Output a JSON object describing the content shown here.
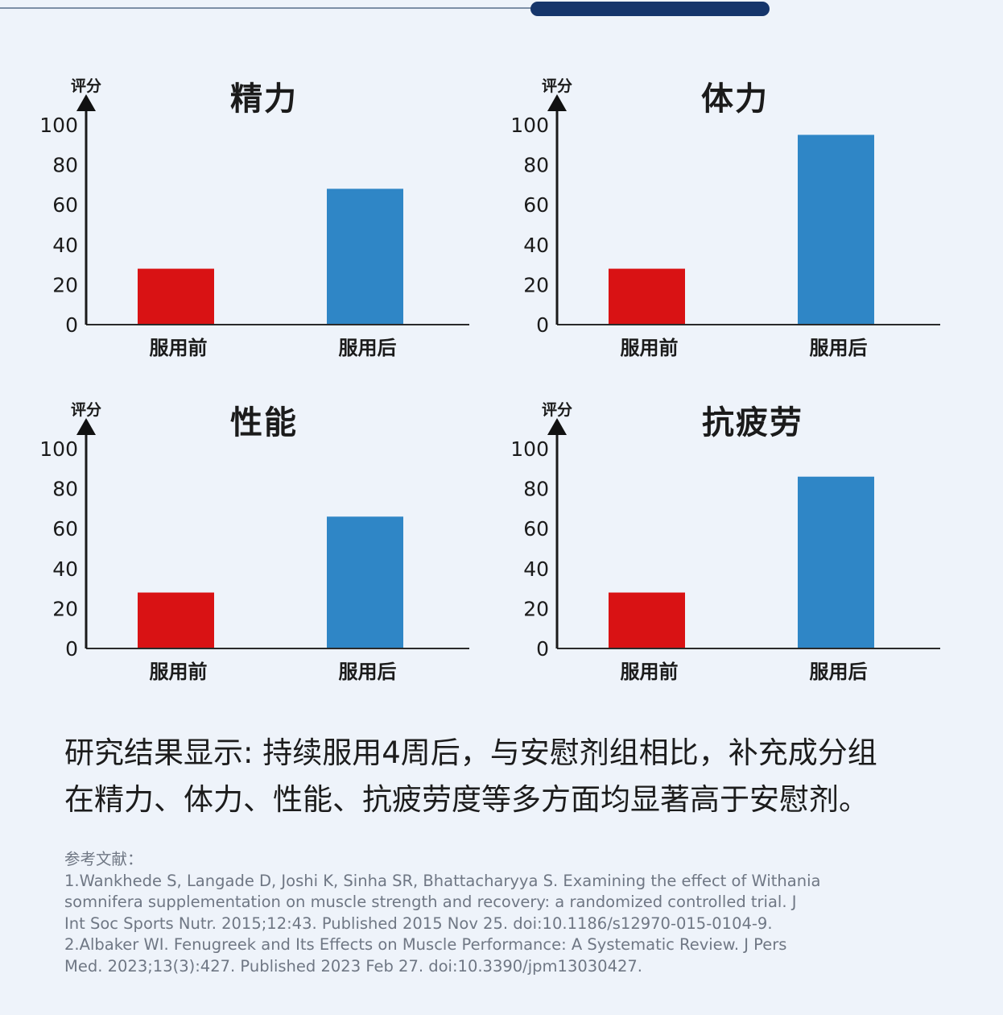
{
  "chart_data": [
    {
      "type": "bar",
      "title": "精力",
      "ylabel": "评分",
      "categories": [
        "服用前",
        "服用后"
      ],
      "values": [
        28,
        68
      ],
      "ylim": [
        0,
        100
      ],
      "yticks": [
        0,
        20,
        40,
        60,
        80,
        100
      ],
      "colors": [
        "#d91214",
        "#2f86c6"
      ]
    },
    {
      "type": "bar",
      "title": "体力",
      "ylabel": "评分",
      "categories": [
        "服用前",
        "服用后"
      ],
      "values": [
        28,
        95
      ],
      "ylim": [
        0,
        100
      ],
      "yticks": [
        0,
        20,
        40,
        60,
        80,
        100
      ],
      "colors": [
        "#d91214",
        "#2f86c6"
      ]
    },
    {
      "type": "bar",
      "title": "性能",
      "ylabel": "评分",
      "categories": [
        "服用前",
        "服用后"
      ],
      "values": [
        28,
        66
      ],
      "ylim": [
        0,
        100
      ],
      "yticks": [
        0,
        20,
        40,
        60,
        80,
        100
      ],
      "colors": [
        "#d91214",
        "#2f86c6"
      ]
    },
    {
      "type": "bar",
      "title": "抗疲劳",
      "ylabel": "评分",
      "categories": [
        "服用前",
        "服用后"
      ],
      "values": [
        28,
        86
      ],
      "ylim": [
        0,
        100
      ],
      "yticks": [
        0,
        20,
        40,
        60,
        80,
        100
      ],
      "colors": [
        "#d91214",
        "#2f86c6"
      ]
    }
  ],
  "summary": {
    "line1": "研究结果显示: 持续服用4周后，与安慰剂组相比，补充成分组",
    "line2": "在精力、体力、性能、抗疲劳度等多方面均显著高于安慰剂。"
  },
  "references": {
    "heading": "参考文献：",
    "lines": [
      "1.Wankhede S, Langade D, Joshi K, Sinha SR, Bhattacharyya S. Examining the effect of Withania",
      "somnifera supplementation on muscle strength and recovery: a randomized controlled trial. J",
      "Int Soc Sports Nutr. 2015;12:43. Published 2015 Nov 25. doi:10.1186/s12970-015-0104-9.",
      "2.Albaker WI. Fenugreek and Its Effects on Muscle Performance: A Systematic Review. J Pers",
      "Med. 2023;13(3):427. Published 2023 Feb 27. doi:10.3390/jpm13030427."
    ]
  },
  "colors": {
    "background": "#eef3fa",
    "before_bar": "#d91214",
    "after_bar": "#2f86c6",
    "top_pill": "#15356b"
  }
}
